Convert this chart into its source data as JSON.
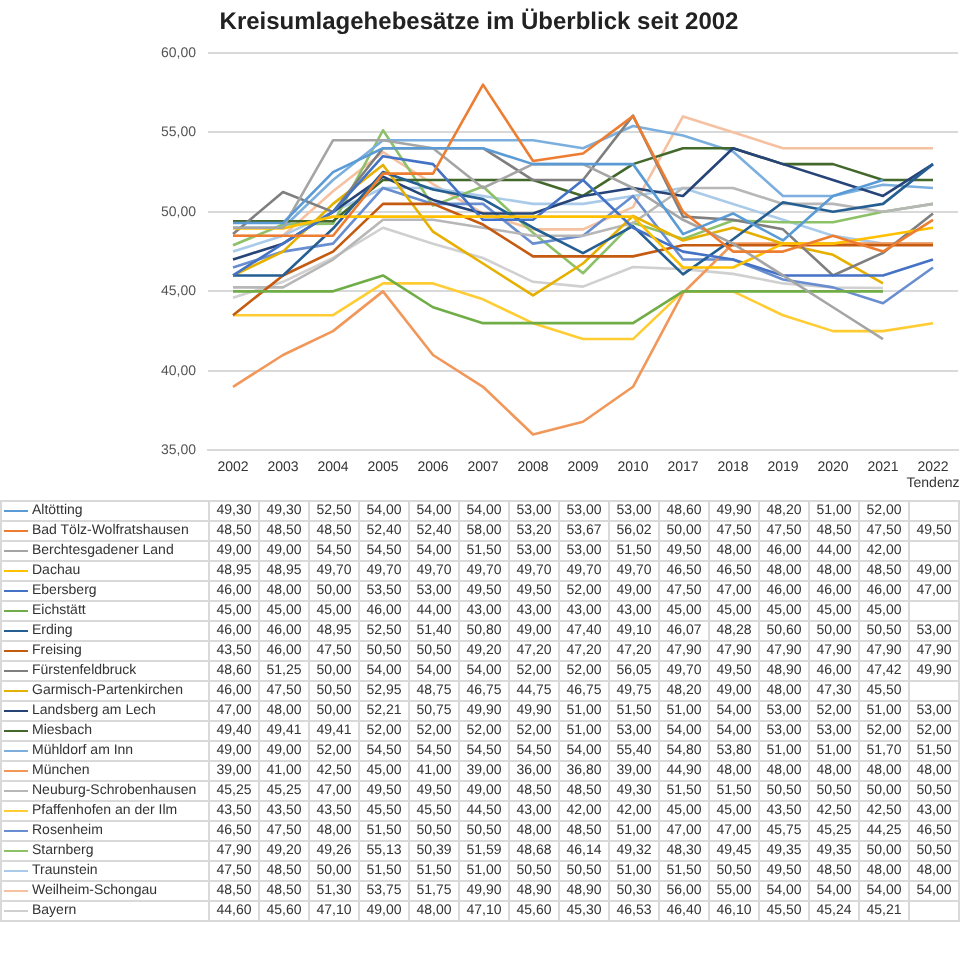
{
  "chart_data": {
    "type": "line",
    "title": "Kreisumlagehebesätze im Überblick seit 2002",
    "categories": [
      "2002",
      "2003",
      "2004",
      "2005",
      "2006",
      "2007",
      "2008",
      "2009",
      "2010",
      "2017",
      "2018",
      "2019",
      "2020",
      "2021",
      "2022 Tendenz"
    ],
    "ylim": [
      35,
      60
    ],
    "yticks": [
      {
        "value": 35,
        "label": "35,00"
      },
      {
        "value": 40,
        "label": "40,00"
      },
      {
        "value": 45,
        "label": "45,00"
      },
      {
        "value": 50,
        "label": "50,00"
      },
      {
        "value": 55,
        "label": "55,00"
      },
      {
        "value": 60,
        "label": "60,00"
      }
    ],
    "grid": "y",
    "legend": "bottom",
    "marker": "none",
    "line_style": "solid",
    "series": [
      {
        "name": "Altötting",
        "color": "#5b9bd5",
        "values": [
          49.3,
          49.3,
          52.5,
          54,
          54,
          54,
          53,
          53,
          53,
          48.6,
          49.9,
          48.2,
          51,
          52,
          null
        ],
        "value_labels": [
          "49,30",
          "49,30",
          "52,50",
          "54,00",
          "54,00",
          "54,00",
          "53,00",
          "53,00",
          "53,00",
          "48,60",
          "49,90",
          "48,20",
          "51,00",
          "52,00",
          null
        ]
      },
      {
        "name": "Bad Tölz-Wolfratshausen",
        "color": "#ed7d31",
        "values": [
          48.5,
          48.5,
          48.5,
          52.4,
          52.4,
          58,
          53.2,
          53.67,
          56.02,
          50,
          47.5,
          47.5,
          48.5,
          47.5,
          49.5
        ],
        "value_labels": [
          "48,50",
          "48,50",
          "48,50",
          "52,40",
          "52,40",
          "58,00",
          "53,20",
          "53,67",
          "56,02",
          "50,00",
          "47,50",
          "47,50",
          "48,50",
          "47,50",
          "49,50"
        ]
      },
      {
        "name": "Berchtesgadener Land",
        "color": "#a5a5a5",
        "values": [
          49,
          49,
          54.5,
          54.5,
          54,
          51.5,
          53,
          53,
          51.5,
          49.5,
          48,
          46,
          44,
          42,
          null
        ],
        "value_labels": [
          "49,00",
          "49,00",
          "54,50",
          "54,50",
          "54,00",
          "51,50",
          "53,00",
          "53,00",
          "51,50",
          "49,50",
          "48,00",
          "46,00",
          "44,00",
          "42,00",
          null
        ]
      },
      {
        "name": "Dachau",
        "color": "#ffc000",
        "values": [
          48.95,
          48.95,
          49.7,
          49.7,
          49.7,
          49.7,
          49.7,
          49.7,
          49.7,
          46.5,
          46.5,
          48,
          48,
          48.5,
          49
        ],
        "value_labels": [
          "48,95",
          "48,95",
          "49,70",
          "49,70",
          "49,70",
          "49,70",
          "49,70",
          "49,70",
          "49,70",
          "46,50",
          "46,50",
          "48,00",
          "48,00",
          "48,50",
          "49,00"
        ]
      },
      {
        "name": "Ebersberg",
        "color": "#4472c4",
        "values": [
          46,
          48,
          50,
          53.5,
          53,
          49.5,
          49.5,
          52,
          49,
          47.5,
          47,
          46,
          46,
          46,
          47
        ],
        "value_labels": [
          "46,00",
          "48,00",
          "50,00",
          "53,50",
          "53,00",
          "49,50",
          "49,50",
          "52,00",
          "49,00",
          "47,50",
          "47,00",
          "46,00",
          "46,00",
          "46,00",
          "47,00"
        ]
      },
      {
        "name": "Eichstätt",
        "color": "#70ad47",
        "values": [
          45,
          45,
          45,
          46,
          44,
          43,
          43,
          43,
          43,
          45,
          45,
          45,
          45,
          45,
          null
        ],
        "value_labels": [
          "45,00",
          "45,00",
          "45,00",
          "46,00",
          "44,00",
          "43,00",
          "43,00",
          "43,00",
          "43,00",
          "45,00",
          "45,00",
          "45,00",
          "45,00",
          "45,00",
          null
        ]
      },
      {
        "name": "Erding",
        "color": "#255e91",
        "values": [
          46,
          46,
          48.95,
          52.5,
          51.4,
          50.8,
          49,
          47.4,
          49.1,
          46.07,
          48.28,
          50.6,
          50,
          50.5,
          53
        ],
        "value_labels": [
          "46,00",
          "46,00",
          "48,95",
          "52,50",
          "51,40",
          "50,80",
          "49,00",
          "47,40",
          "49,10",
          "46,07",
          "48,28",
          "50,60",
          "50,00",
          "50,50",
          "53,00"
        ]
      },
      {
        "name": "Freising",
        "color": "#c55a11",
        "values": [
          43.5,
          46,
          47.5,
          50.5,
          50.5,
          49.2,
          47.2,
          47.2,
          47.2,
          47.9,
          47.9,
          47.9,
          47.9,
          47.9,
          47.9
        ],
        "value_labels": [
          "43,50",
          "46,00",
          "47,50",
          "50,50",
          "50,50",
          "49,20",
          "47,20",
          "47,20",
          "47,20",
          "47,90",
          "47,90",
          "47,90",
          "47,90",
          "47,90",
          "47,90"
        ]
      },
      {
        "name": "Fürstenfeldbruck",
        "color": "#7f7f7f",
        "values": [
          48.6,
          51.25,
          50,
          54,
          54,
          54,
          52,
          52,
          56.05,
          49.7,
          49.5,
          48.9,
          46,
          47.42,
          49.9
        ],
        "value_labels": [
          "48,60",
          "51,25",
          "50,00",
          "54,00",
          "54,00",
          "54,00",
          "52,00",
          "52,00",
          "56,05",
          "49,70",
          "49,50",
          "48,90",
          "46,00",
          "47,42",
          "49,90"
        ]
      },
      {
        "name": "Garmisch-Partenkirchen",
        "color": "#e6b000",
        "values": [
          46,
          47.5,
          50.5,
          52.95,
          48.75,
          46.75,
          44.75,
          46.75,
          49.75,
          48.2,
          49,
          48,
          47.3,
          45.5,
          null
        ],
        "value_labels": [
          "46,00",
          "47,50",
          "50,50",
          "52,95",
          "48,75",
          "46,75",
          "44,75",
          "46,75",
          "49,75",
          "48,20",
          "49,00",
          "48,00",
          "47,30",
          "45,50",
          null
        ]
      },
      {
        "name": "Landsberg am Lech",
        "color": "#264478",
        "values": [
          47,
          48,
          50,
          52.21,
          50.75,
          49.9,
          49.9,
          51,
          51.5,
          51,
          54,
          53,
          52,
          51,
          53
        ],
        "value_labels": [
          "47,00",
          "48,00",
          "50,00",
          "52,21",
          "50,75",
          "49,90",
          "49,90",
          "51,00",
          "51,50",
          "51,00",
          "54,00",
          "53,00",
          "52,00",
          "51,00",
          "53,00"
        ]
      },
      {
        "name": "Miesbach",
        "color": "#43682b",
        "values": [
          49.4,
          49.41,
          49.41,
          52,
          52,
          52,
          52,
          51,
          53,
          54,
          54,
          53,
          53,
          52,
          52
        ],
        "value_labels": [
          "49,40",
          "49,41",
          "49,41",
          "52,00",
          "52,00",
          "52,00",
          "52,00",
          "51,00",
          "53,00",
          "54,00",
          "54,00",
          "53,00",
          "53,00",
          "52,00",
          "52,00"
        ]
      },
      {
        "name": "Mühldorf am Inn",
        "color": "#7cafdd",
        "values": [
          49,
          49,
          52,
          54.5,
          54.5,
          54.5,
          54.5,
          54,
          55.4,
          54.8,
          53.8,
          51,
          51,
          51.7,
          51.5
        ],
        "value_labels": [
          "49,00",
          "49,00",
          "52,00",
          "54,50",
          "54,50",
          "54,50",
          "54,50",
          "54,00",
          "55,40",
          "54,80",
          "53,80",
          "51,00",
          "51,00",
          "51,70",
          "51,50"
        ]
      },
      {
        "name": "München",
        "color": "#f1975a",
        "values": [
          39,
          41,
          42.5,
          45,
          41,
          39,
          36,
          36.8,
          39,
          44.9,
          48,
          48,
          48,
          48,
          48
        ],
        "value_labels": [
          "39,00",
          "41,00",
          "42,50",
          "45,00",
          "41,00",
          "39,00",
          "36,00",
          "36,80",
          "39,00",
          "44,90",
          "48,00",
          "48,00",
          "48,00",
          "48,00",
          "48,00"
        ]
      },
      {
        "name": "Neuburg-Schrobenhausen",
        "color": "#b7b7b7",
        "values": [
          45.25,
          45.25,
          47,
          49.5,
          49.5,
          49,
          48.5,
          48.5,
          49.3,
          51.5,
          51.5,
          50.5,
          50.5,
          50,
          50.5
        ],
        "value_labels": [
          "45,25",
          "45,25",
          "47,00",
          "49,50",
          "49,50",
          "49,00",
          "48,50",
          "48,50",
          "49,30",
          "51,50",
          "51,50",
          "50,50",
          "50,50",
          "50,00",
          "50,50"
        ]
      },
      {
        "name": "Pfaffenhofen an der Ilm",
        "color": "#ffcd33",
        "values": [
          43.5,
          43.5,
          43.5,
          45.5,
          45.5,
          44.5,
          43,
          42,
          42,
          45,
          45,
          43.5,
          42.5,
          42.5,
          43
        ],
        "value_labels": [
          "43,50",
          "43,50",
          "43,50",
          "45,50",
          "45,50",
          "44,50",
          "43,00",
          "42,00",
          "42,00",
          "45,00",
          "45,00",
          "43,50",
          "42,50",
          "42,50",
          "43,00"
        ]
      },
      {
        "name": "Rosenheim",
        "color": "#698ed0",
        "values": [
          46.5,
          47.5,
          48,
          51.5,
          50.5,
          50.5,
          48,
          48.5,
          51,
          47,
          47,
          45.75,
          45.25,
          44.25,
          46.5
        ],
        "value_labels": [
          "46,50",
          "47,50",
          "48,00",
          "51,50",
          "50,50",
          "50,50",
          "48,00",
          "48,50",
          "51,00",
          "47,00",
          "47,00",
          "45,75",
          "45,25",
          "44,25",
          "46,50"
        ]
      },
      {
        "name": "Starnberg",
        "color": "#8cc168",
        "values": [
          47.9,
          49.2,
          49.26,
          55.13,
          50.39,
          51.59,
          48.68,
          46.14,
          49.32,
          48.3,
          49.45,
          49.35,
          49.35,
          50,
          50.5
        ],
        "value_labels": [
          "47,90",
          "49,20",
          "49,26",
          "55,13",
          "50,39",
          "51,59",
          "48,68",
          "46,14",
          "49,32",
          "48,30",
          "49,45",
          "49,35",
          "49,35",
          "50,00",
          "50,50"
        ]
      },
      {
        "name": "Traunstein",
        "color": "#a9cbe9",
        "values": [
          47.5,
          48.5,
          50,
          51.5,
          51.5,
          51,
          50.5,
          50.5,
          51,
          51.5,
          50.5,
          49.5,
          48.5,
          48,
          48
        ],
        "value_labels": [
          "47,50",
          "48,50",
          "50,00",
          "51,50",
          "51,50",
          "51,00",
          "50,50",
          "50,50",
          "51,00",
          "51,50",
          "50,50",
          "49,50",
          "48,50",
          "48,00",
          "48,00"
        ]
      },
      {
        "name": "Weilheim-Schongau",
        "color": "#f6c1a0",
        "values": [
          48.5,
          48.5,
          51.3,
          53.75,
          51.75,
          49.9,
          48.9,
          48.9,
          50.3,
          56,
          55,
          54,
          54,
          54,
          54
        ],
        "value_labels": [
          "48,50",
          "48,50",
          "51,30",
          "53,75",
          "51,75",
          "49,90",
          "48,90",
          "48,90",
          "50,30",
          "56,00",
          "55,00",
          "54,00",
          "54,00",
          "54,00",
          "54,00"
        ]
      },
      {
        "name": "Bayern",
        "color": "#d0d0d0",
        "values": [
          44.6,
          45.6,
          47.1,
          49,
          48,
          47.1,
          45.6,
          45.3,
          46.53,
          46.4,
          46.1,
          45.5,
          45.24,
          45.21,
          null
        ],
        "value_labels": [
          "44,60",
          "45,60",
          "47,10",
          "49,00",
          "48,00",
          "47,10",
          "45,60",
          "45,30",
          "46,53",
          "46,40",
          "46,10",
          "45,50",
          "45,24",
          "45,21",
          null
        ]
      }
    ]
  }
}
